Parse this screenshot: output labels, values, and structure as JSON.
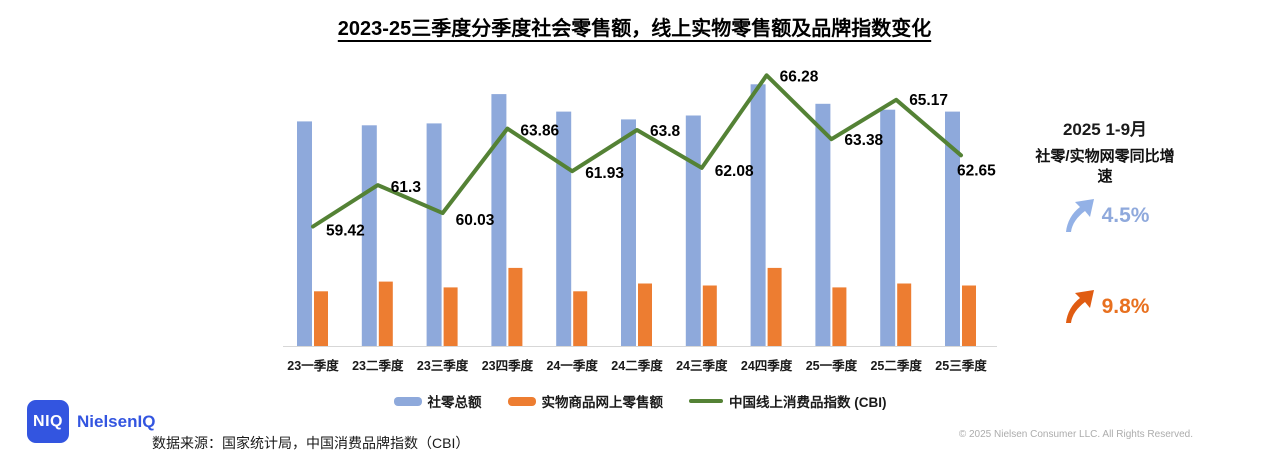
{
  "title": "2023-25三季度分季度社会零售额，线上实物零售额及品牌指数变化",
  "chart_data": {
    "type": "combo",
    "categories": [
      "23一季度",
      "23二季度",
      "23三季度",
      "23四季度",
      "24一季度",
      "24二季度",
      "24三季度",
      "24四季度",
      "25一季度",
      "25二季度",
      "25三季度"
    ],
    "series": [
      {
        "name": "社零总额",
        "type": "bar",
        "color": "#8EA9DB",
        "axis": "left",
        "values": [
          11.5,
          11.3,
          11.4,
          12.9,
          12.0,
          11.6,
          11.8,
          13.4,
          12.4,
          12.1,
          12.0
        ]
      },
      {
        "name": "实物商品网上零售额",
        "type": "bar",
        "color": "#ED7D31",
        "axis": "left",
        "values": [
          2.8,
          3.3,
          3.0,
          4.0,
          2.8,
          3.2,
          3.1,
          4.0,
          3.0,
          3.2,
          3.1
        ]
      },
      {
        "name": "中国线上消费品指数 (CBI)",
        "type": "line",
        "color": "#548235",
        "axis": "right",
        "values": [
          59.42,
          61.3,
          60.03,
          63.86,
          61.93,
          63.8,
          62.08,
          66.28,
          63.38,
          65.17,
          62.65
        ],
        "data_labels_visible": true
      }
    ],
    "left_axis": {
      "min": 0,
      "max": 14.9,
      "visible": false
    },
    "right_axis": {
      "min": 54,
      "max": 67.2,
      "visible": false
    },
    "grid": false,
    "legend_position": "bottom",
    "baseline_color": "#D7D7D7",
    "label_color": "#000000"
  },
  "side_panel": {
    "period": "2025 1-9月",
    "label": "社零/实物网零同比增速",
    "metrics": [
      {
        "value": "4.5%",
        "text_color": "#8FA9DC",
        "arrow_color": "#93B1E6",
        "icon": "up-arrow"
      },
      {
        "value": "9.8%",
        "text_color": "#E8701F",
        "arrow_color": "#E05C12",
        "icon": "up-arrow"
      }
    ]
  },
  "footer": {
    "logo_badge": "NIQ",
    "logo_text": "NielsenIQ",
    "logo_color": "#3355E0",
    "source": "数据来源：国家统计局，中国消费品牌指数（CBI）",
    "copyright": "© 2025 Nielsen Consumer LLC. All Rights Reserved."
  }
}
